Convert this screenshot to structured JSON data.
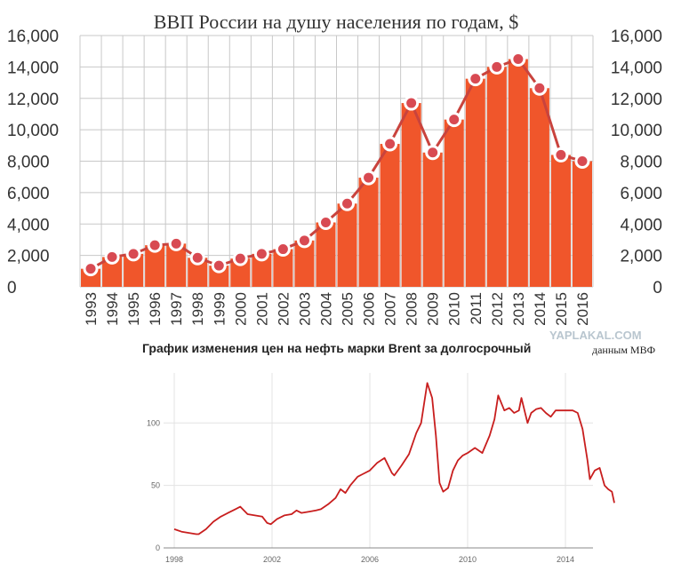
{
  "watermark": "YAPLAKAL.COM",
  "source_note": "данным МВФ",
  "colors": {
    "bar": "#f0562b",
    "line": "#c9433d",
    "marker": "#d84a52",
    "grid": "#c8c8c8",
    "oil_line": "#c81e1e"
  },
  "chart_data": [
    {
      "type": "bar",
      "title": "ВВП России на душу населения по годам, $",
      "xlabel": "",
      "ylabel": "",
      "categories": [
        "1993",
        "1994",
        "1995",
        "1996",
        "1997",
        "1998",
        "1999",
        "2000",
        "2001",
        "2002",
        "2003",
        "2004",
        "2005",
        "2006",
        "2007",
        "2008",
        "2009",
        "2010",
        "2011",
        "2012",
        "2013",
        "2014",
        "2015",
        "2016"
      ],
      "values": [
        1150,
        1900,
        2100,
        2650,
        2750,
        1850,
        1350,
        1800,
        2100,
        2400,
        2950,
        4100,
        5300,
        6950,
        9100,
        11700,
        8550,
        10650,
        13250,
        14000,
        14500,
        12650,
        8400,
        8000
      ],
      "ylim": [
        0,
        16000
      ],
      "yticks": [
        0,
        2000,
        4000,
        6000,
        8000,
        10000,
        12000,
        14000,
        16000
      ],
      "ytick_labels": [
        "0",
        "2,000",
        "4,000",
        "6,000",
        "8,000",
        "10,000",
        "12,000",
        "14,000",
        "16,000"
      ],
      "grid": true,
      "overlay": "line-with-markers"
    },
    {
      "type": "line",
      "title": "График изменения цен на нефть марки Brent за долгосрочный",
      "xlabel": "",
      "ylabel": "",
      "xlim": [
        1998,
        2016
      ],
      "ylim": [
        0,
        140
      ],
      "xticks": [
        1998,
        2002,
        2006,
        2010,
        2014
      ],
      "xtick_labels": [
        "1998",
        "2002",
        "2006",
        "2010",
        "2014"
      ],
      "yticks": [
        0,
        50,
        100
      ],
      "ytick_labels": [
        "0",
        "50",
        "100"
      ],
      "grid": true,
      "x": [
        1998.0,
        1998.3,
        1998.6,
        1998.9,
        1999.0,
        1999.3,
        1999.6,
        1999.9,
        2000.2,
        2000.5,
        2000.7,
        2001.0,
        2001.3,
        2001.6,
        2001.8,
        2001.95,
        2002.2,
        2002.5,
        2002.8,
        2003.0,
        2003.2,
        2003.5,
        2003.8,
        2004.0,
        2004.3,
        2004.6,
        2004.8,
        2005.0,
        2005.2,
        2005.5,
        2005.7,
        2006.0,
        2006.3,
        2006.6,
        2006.9,
        2007.0,
        2007.3,
        2007.6,
        2007.9,
        2008.1,
        2008.35,
        2008.55,
        2008.7,
        2008.85,
        2009.0,
        2009.2,
        2009.4,
        2009.6,
        2009.8,
        2010.0,
        2010.3,
        2010.6,
        2010.9,
        2011.1,
        2011.25,
        2011.5,
        2011.7,
        2011.9,
        2012.1,
        2012.2,
        2012.45,
        2012.6,
        2012.8,
        2013.0,
        2013.2,
        2013.4,
        2013.6,
        2013.8,
        2014.0,
        2014.3,
        2014.5,
        2014.7,
        2014.9,
        2015.0,
        2015.2,
        2015.4,
        2015.6,
        2015.75,
        2015.9,
        2016.0
      ],
      "y": [
        15,
        13,
        12,
        11,
        11,
        15,
        21,
        25,
        28,
        31,
        33,
        27,
        26,
        25,
        20,
        19,
        23,
        26,
        27,
        30,
        28,
        29,
        30,
        31,
        35,
        40,
        47,
        44,
        50,
        57,
        59,
        62,
        68,
        72,
        60,
        58,
        66,
        75,
        92,
        100,
        132,
        120,
        90,
        52,
        45,
        48,
        62,
        70,
        74,
        76,
        80,
        76,
        90,
        103,
        122,
        110,
        112,
        108,
        110,
        120,
        100,
        108,
        111,
        112,
        108,
        105,
        110,
        110,
        110,
        110,
        108,
        95,
        70,
        55,
        62,
        64,
        50,
        47,
        45,
        36
      ],
      "series_name": ""
    }
  ]
}
